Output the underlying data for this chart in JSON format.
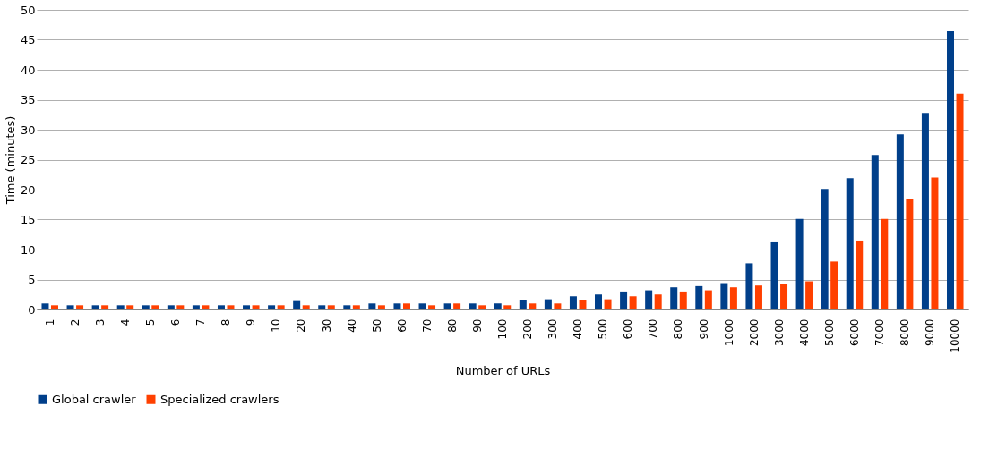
{
  "chart_data": {
    "type": "bar",
    "xlabel": "Number of URLs",
    "ylabel": "Time (minutes)",
    "categories": [
      "1",
      "2",
      "3",
      "4",
      "5",
      "6",
      "7",
      "8",
      "9",
      "10",
      "20",
      "30",
      "40",
      "50",
      "60",
      "70",
      "80",
      "90",
      "100",
      "200",
      "300",
      "400",
      "500",
      "600",
      "700",
      "800",
      "900",
      "1000",
      "2000",
      "3000",
      "4000",
      "5000",
      "6000",
      "7000",
      "8000",
      "9000",
      "10000"
    ],
    "series": [
      {
        "name": "Global crawler",
        "color": "#003f8a",
        "values": [
          1.0,
          0.7,
          0.7,
          0.7,
          0.7,
          0.7,
          0.7,
          0.7,
          0.7,
          0.7,
          1.4,
          0.7,
          0.7,
          1.0,
          1.0,
          1.0,
          1.0,
          1.0,
          1.0,
          1.5,
          1.7,
          2.2,
          2.5,
          3.0,
          3.2,
          3.7,
          3.9,
          4.4,
          7.7,
          11.2,
          15.1,
          20.1,
          21.9,
          25.8,
          29.2,
          32.8,
          46.4
        ]
      },
      {
        "name": "Specialized crawlers",
        "color": "#ff4000",
        "values": [
          0.7,
          0.7,
          0.7,
          0.7,
          0.7,
          0.7,
          0.7,
          0.7,
          0.7,
          0.7,
          0.7,
          0.7,
          0.7,
          0.7,
          1.0,
          0.7,
          1.0,
          0.7,
          0.7,
          1.0,
          1.0,
          1.5,
          1.7,
          2.2,
          2.5,
          3.0,
          3.2,
          3.7,
          4.0,
          4.2,
          4.7,
          8.0,
          11.5,
          15.1,
          18.5,
          22.0,
          36.0
        ]
      }
    ],
    "ylim": [
      0,
      50
    ],
    "yticks": [
      0,
      5,
      10,
      15,
      20,
      25,
      30,
      35,
      40,
      45,
      50
    ],
    "grid": "y",
    "legend": "bottom"
  }
}
